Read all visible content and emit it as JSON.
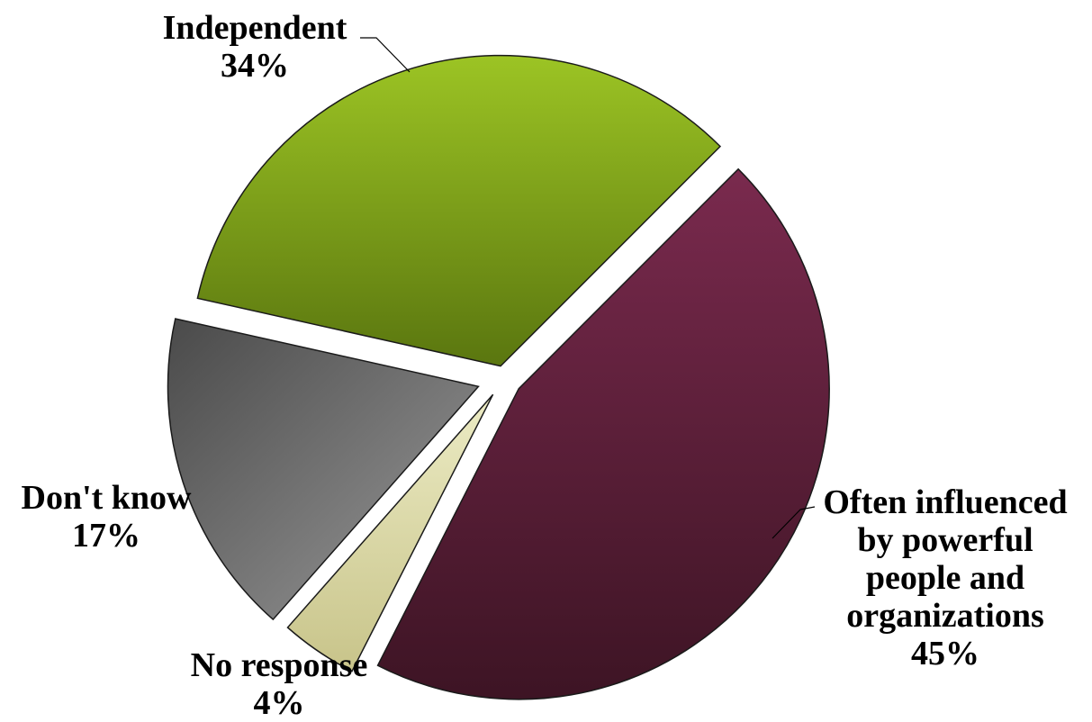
{
  "chart_data": {
    "type": "pie",
    "title": "",
    "legend": "none",
    "slices": [
      {
        "key": "independent",
        "label": "Independent",
        "value": 34,
        "display": "34%",
        "color_top": "#9cc424",
        "color_bottom": "#5a760f"
      },
      {
        "key": "often",
        "label_lines": [
          "Often influenced",
          "by powerful",
          "people and",
          "organizations"
        ],
        "label": "Often influenced by powerful people and organizations",
        "value": 45,
        "display": "45%",
        "color_top": "#7a2a4e",
        "color_bottom": "#3d1424"
      },
      {
        "key": "no-response",
        "label": "No response",
        "value": 4,
        "display": "4%",
        "color_top": "#ecebc4",
        "color_bottom": "#c8c48a"
      },
      {
        "key": "dont-know",
        "label": "Don't know",
        "value": 17,
        "display": "17%",
        "color_top": "#4a4a4a",
        "color_bottom": "#9a9a9a"
      }
    ]
  }
}
